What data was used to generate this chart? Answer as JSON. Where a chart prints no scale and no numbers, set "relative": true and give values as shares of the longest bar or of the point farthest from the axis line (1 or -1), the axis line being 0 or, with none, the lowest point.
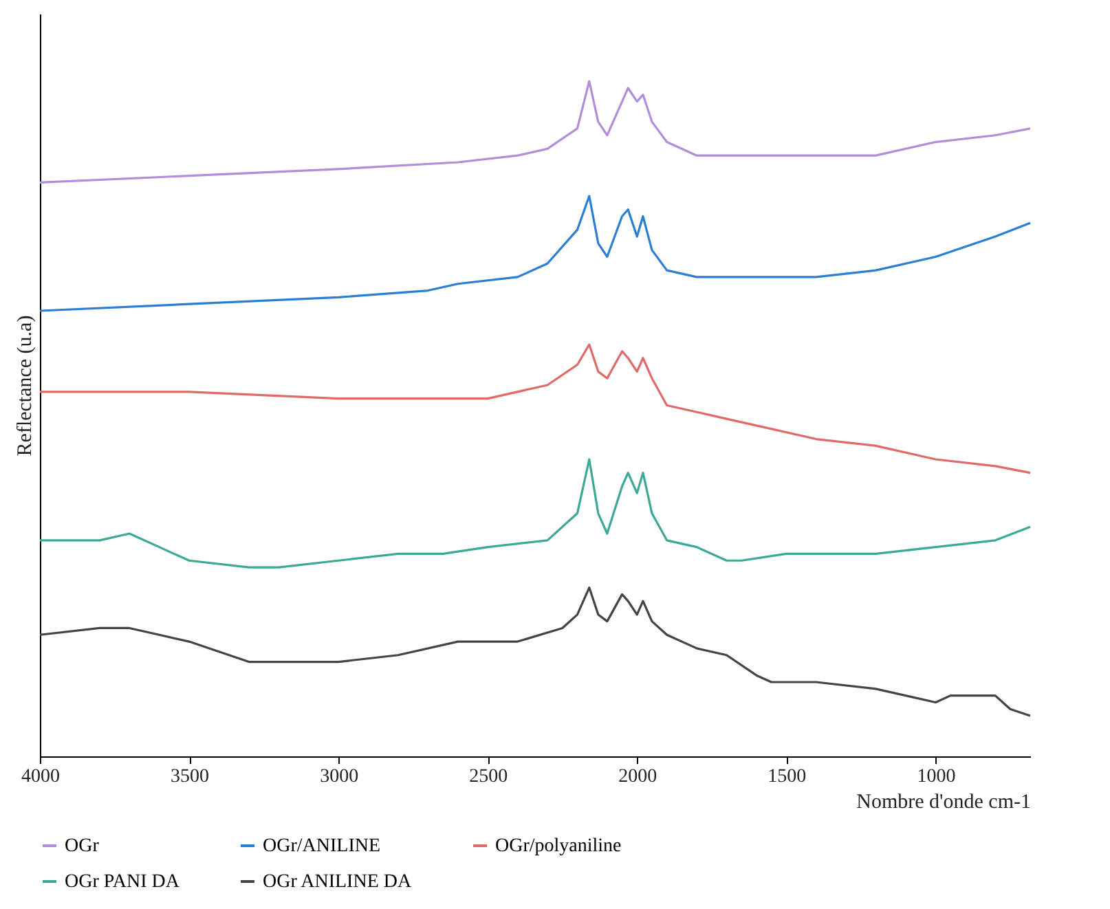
{
  "chart_data": {
    "type": "line",
    "ylabel": "Reflectance (u.a)",
    "xlabel": "Nombre d'onde cm-1",
    "relative": true,
    "xlim": [
      4000,
      683
    ],
    "xticks": [
      4000,
      3500,
      3000,
      2500,
      2000,
      1500,
      1000
    ],
    "grid": false,
    "legend": "bottom",
    "marker": "none",
    "line_style": "solid",
    "series": [
      {
        "name": "OGr",
        "color": "#b08fd8",
        "x": [
          4000,
          3500,
          3000,
          2600,
          2400,
          2300,
          2200,
          2160,
          2130,
          2100,
          2050,
          2030,
          2000,
          1980,
          1950,
          1900,
          1800,
          1600,
          1400,
          1200,
          1000,
          800,
          683
        ],
        "values": [
          0.85,
          0.86,
          0.87,
          0.88,
          0.89,
          0.9,
          0.93,
          1,
          0.94,
          0.92,
          0.97,
          0.99,
          0.97,
          0.98,
          0.94,
          0.91,
          0.89,
          0.89,
          0.89,
          0.89,
          0.91,
          0.92,
          0.93
        ]
      },
      {
        "name": "OGr/ANILINE",
        "color": "#2a7fd4",
        "x": [
          4000,
          3500,
          3000,
          2700,
          2600,
          2400,
          2300,
          2200,
          2160,
          2130,
          2100,
          2050,
          2030,
          2000,
          1980,
          1950,
          1900,
          1800,
          1600,
          1400,
          1200,
          1000,
          800,
          683
        ],
        "values": [
          0.66,
          0.67,
          0.68,
          0.69,
          0.7,
          0.71,
          0.73,
          0.78,
          0.83,
          0.76,
          0.74,
          0.8,
          0.81,
          0.77,
          0.8,
          0.75,
          0.72,
          0.71,
          0.71,
          0.71,
          0.72,
          0.74,
          0.77,
          0.79
        ]
      },
      {
        "name": "OGr/polyaniline",
        "color": "#e06a6a",
        "x": [
          4000,
          3700,
          3500,
          3000,
          2700,
          2500,
          2300,
          2200,
          2160,
          2130,
          2100,
          2050,
          2030,
          2000,
          1980,
          1950,
          1900,
          1800,
          1700,
          1600,
          1400,
          1200,
          1000,
          800,
          683
        ],
        "values": [
          0.54,
          0.54,
          0.54,
          0.53,
          0.53,
          0.53,
          0.55,
          0.58,
          0.61,
          0.57,
          0.56,
          0.6,
          0.59,
          0.57,
          0.59,
          0.56,
          0.52,
          0.51,
          0.5,
          0.49,
          0.47,
          0.46,
          0.44,
          0.43,
          0.42
        ]
      },
      {
        "name": "OGr PANI DA",
        "color": "#3aaa94",
        "x": [
          4000,
          3800,
          3700,
          3600,
          3500,
          3300,
          3200,
          3000,
          2800,
          2650,
          2500,
          2300,
          2200,
          2160,
          2130,
          2100,
          2050,
          2030,
          2000,
          1980,
          1950,
          1900,
          1800,
          1700,
          1650,
          1500,
          1200,
          1000,
          800,
          683
        ],
        "values": [
          0.32,
          0.32,
          0.33,
          0.31,
          0.29,
          0.28,
          0.28,
          0.29,
          0.3,
          0.3,
          0.31,
          0.32,
          0.36,
          0.44,
          0.36,
          0.33,
          0.4,
          0.42,
          0.39,
          0.42,
          0.36,
          0.32,
          0.31,
          0.29,
          0.29,
          0.3,
          0.3,
          0.31,
          0.32,
          0.34
        ]
      },
      {
        "name": "OGr ANILINE DA",
        "color": "#444444",
        "x": [
          4000,
          3800,
          3700,
          3600,
          3500,
          3300,
          3200,
          3000,
          2800,
          2600,
          2400,
          2250,
          2200,
          2160,
          2130,
          2100,
          2050,
          2030,
          2000,
          1980,
          1950,
          1900,
          1800,
          1700,
          1600,
          1550,
          1400,
          1200,
          1000,
          950,
          800,
          750,
          683
        ],
        "values": [
          0.18,
          0.19,
          0.19,
          0.18,
          0.17,
          0.14,
          0.14,
          0.14,
          0.15,
          0.17,
          0.17,
          0.19,
          0.21,
          0.25,
          0.21,
          0.2,
          0.24,
          0.23,
          0.21,
          0.23,
          0.2,
          0.18,
          0.16,
          0.15,
          0.12,
          0.11,
          0.11,
          0.1,
          0.08,
          0.09,
          0.09,
          0.07,
          0.06
        ]
      }
    ]
  }
}
